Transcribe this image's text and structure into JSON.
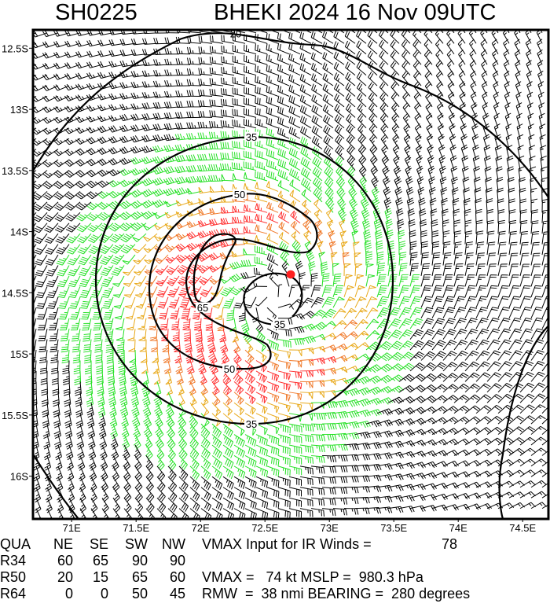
{
  "title": {
    "storm_id": "SH0225",
    "storm_info": "BHEKI 2024 16 Nov 09UTC"
  },
  "chart_data": {
    "type": "wind-barb-map",
    "x_ticks": [
      "71E",
      "71.5E",
      "72E",
      "72.5E",
      "73E",
      "73.5E",
      "74E",
      "74.5E"
    ],
    "x_tick_values": [
      71,
      71.5,
      72,
      72.5,
      73,
      73.5,
      74,
      74.5
    ],
    "y_ticks": [
      "12.5S",
      "13S",
      "13.5S",
      "14S",
      "14.5S",
      "15S",
      "15.5S",
      "16S"
    ],
    "y_tick_values": [
      -12.5,
      -13,
      -13.5,
      -14,
      -14.5,
      -15,
      -15.5,
      -16
    ],
    "xlim": [
      70.7,
      74.7
    ],
    "ylim": [
      -16.35,
      -12.35
    ],
    "contour_labels": [
      "20",
      "35",
      "50",
      "65",
      "50",
      "35"
    ],
    "contour_levels_kt": [
      20,
      35,
      50,
      65
    ],
    "storm_center": {
      "lon": 72.55,
      "lat": -14.55
    },
    "marker_position": {
      "lon": 72.67,
      "lat": -14.35
    },
    "speed_colors": {
      "below_34": "#000000",
      "34_to_50": "#22e022",
      "50_to_58": "#e8a818",
      "58_to_64": "#f07828",
      "64_plus": "#ff3030"
    },
    "marker_color": "#ff2020"
  },
  "table": {
    "header": [
      "QUA",
      "NE",
      "SE",
      "SW",
      "NW"
    ],
    "rows": [
      [
        "R34",
        "60",
        "65",
        "90",
        "90"
      ],
      [
        "R50",
        "20",
        "15",
        "65",
        "60"
      ],
      [
        "R64",
        "0",
        "0",
        "50",
        "45"
      ]
    ]
  },
  "info": {
    "vmax_input": "VMAX Input for IR Winds =",
    "vmax_input_value": "78",
    "vmax_line": "VMAX =   74 kt MSLP =  980.3 hPa",
    "rmw_line": "RMW  =  38 nmi BEARING =  280 degrees"
  },
  "vmax_kt": 74,
  "rmw_nmi": 38
}
